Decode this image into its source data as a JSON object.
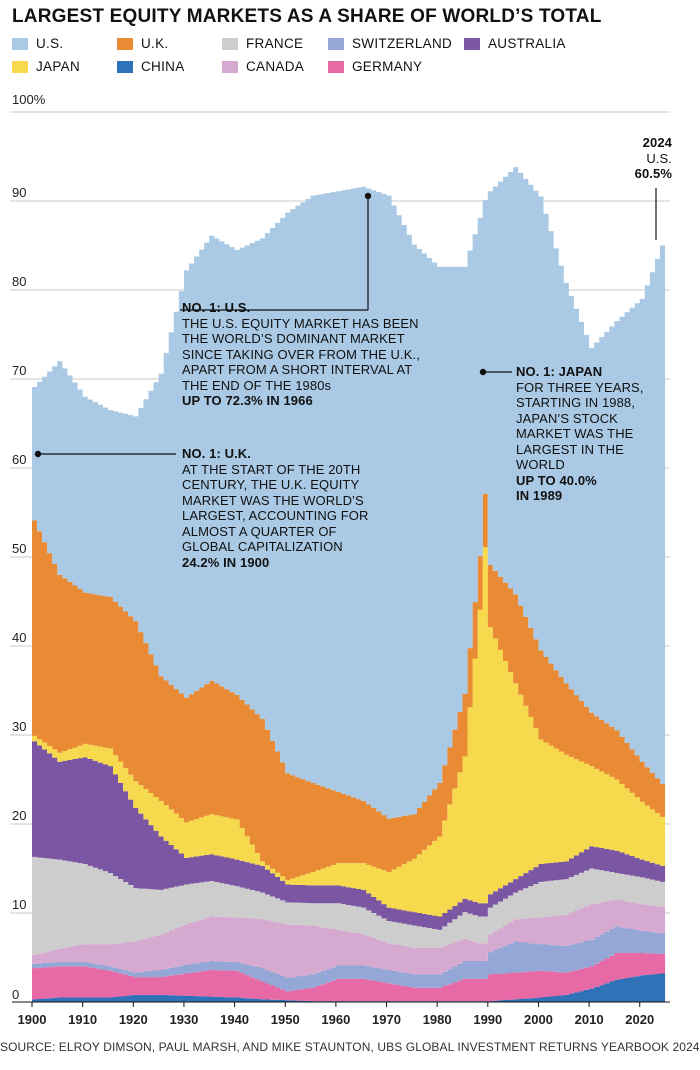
{
  "chart_data": {
    "type": "area",
    "stacked": true,
    "title": "LARGEST EQUITY MARKETS AS A SHARE OF WORLD’S TOTAL",
    "y_unit_label": "100%",
    "ylim": [
      0,
      100
    ],
    "y_ticks": [
      "0",
      "10",
      "20",
      "30",
      "40",
      "50",
      "60",
      "70",
      "80",
      "90"
    ],
    "x_ticks": [
      "1900",
      "1910",
      "1920",
      "1930",
      "1940",
      "1950",
      "1960",
      "1970",
      "1980",
      "1990",
      "2000",
      "2010",
      "2020"
    ],
    "x_range": [
      1900,
      2024
    ],
    "grid": "horizontal",
    "legend_position": "top",
    "legend": [
      {
        "name": "U.S.",
        "color": "#a9c9e4"
      },
      {
        "name": "U.K.",
        "color": "#e98a35"
      },
      {
        "name": "FRANCE",
        "color": "#cdcdcd"
      },
      {
        "name": "SWITZERLAND",
        "color": "#95a7d6"
      },
      {
        "name": "AUSTRALIA",
        "color": "#7b56a3"
      },
      {
        "name": "JAPAN",
        "color": "#f7d94d"
      },
      {
        "name": "CHINA",
        "color": "#2f72b8"
      },
      {
        "name": "CANADA",
        "color": "#d6a9d0"
      },
      {
        "name": "GERMANY",
        "color": "#e76aa6"
      }
    ],
    "stack_order": [
      "CHINA",
      "GERMANY",
      "SWITZERLAND",
      "CANADA",
      "FRANCE",
      "AUSTRALIA",
      "JAPAN",
      "U.K.",
      "U.S."
    ],
    "years": [
      1900,
      1905,
      1910,
      1915,
      1920,
      1925,
      1930,
      1935,
      1940,
      1945,
      1950,
      1955,
      1960,
      1965,
      1970,
      1975,
      1980,
      1985,
      1988,
      1989,
      1990,
      1995,
      2000,
      2005,
      2010,
      2015,
      2020,
      2024
    ],
    "series": [
      {
        "name": "CHINA",
        "values": [
          0.3,
          0.5,
          0.5,
          0.5,
          0.8,
          0.8,
          0.7,
          0.6,
          0.5,
          0.3,
          0.2,
          0.1,
          0.1,
          0.1,
          0.1,
          0.1,
          0.1,
          0.1,
          0.1,
          0.1,
          0.1,
          0.3,
          0.5,
          0.8,
          1.5,
          2.5,
          3.0,
          3.2
        ]
      },
      {
        "name": "GERMANY",
        "values": [
          3.5,
          3.5,
          3.5,
          3.0,
          2.0,
          2.0,
          2.5,
          3.0,
          3.0,
          2.0,
          1.0,
          1.5,
          2.5,
          2.5,
          2.0,
          1.5,
          1.5,
          2.5,
          2.5,
          2.5,
          3.0,
          3.0,
          3.0,
          2.5,
          2.5,
          3.0,
          2.5,
          2.2
        ]
      },
      {
        "name": "SWITZERLAND",
        "values": [
          0.5,
          0.5,
          0.5,
          0.5,
          0.5,
          0.8,
          1.0,
          1.0,
          1.0,
          1.5,
          1.5,
          1.5,
          1.5,
          1.5,
          1.5,
          1.5,
          1.5,
          2.0,
          2.0,
          2.0,
          2.5,
          3.5,
          3.0,
          3.0,
          3.0,
          3.0,
          2.5,
          2.3
        ]
      },
      {
        "name": "CANADA",
        "values": [
          1.0,
          1.5,
          2.0,
          2.5,
          3.5,
          4.0,
          4.5,
          5.0,
          5.0,
          5.5,
          6.0,
          5.5,
          4.0,
          3.5,
          3.0,
          3.0,
          3.0,
          2.5,
          2.0,
          2.0,
          2.0,
          2.5,
          3.0,
          3.5,
          4.0,
          3.0,
          3.0,
          3.0
        ]
      },
      {
        "name": "FRANCE",
        "values": [
          11.0,
          10.0,
          9.0,
          8.0,
          6.0,
          5.0,
          4.5,
          4.0,
          3.5,
          3.0,
          2.5,
          2.5,
          3.0,
          3.0,
          2.5,
          2.5,
          2.0,
          3.0,
          3.0,
          3.0,
          3.0,
          3.0,
          4.0,
          4.0,
          4.0,
          3.0,
          3.0,
          2.8
        ]
      },
      {
        "name": "AUSTRALIA",
        "values": [
          13.0,
          11.0,
          12.0,
          12.0,
          9.0,
          6.0,
          3.0,
          3.0,
          3.0,
          3.0,
          2.0,
          2.0,
          2.0,
          2.0,
          1.5,
          1.5,
          1.5,
          1.5,
          1.5,
          1.5,
          1.5,
          1.5,
          2.0,
          2.0,
          2.5,
          2.5,
          2.0,
          1.8
        ]
      },
      {
        "name": "JAPAN",
        "values": [
          0.6,
          1.0,
          1.5,
          2.0,
          3.0,
          4.0,
          4.0,
          4.5,
          4.5,
          0.5,
          0.5,
          1.5,
          2.5,
          3.0,
          4.0,
          6.0,
          9.0,
          16.0,
          33.0,
          40.0,
          30.0,
          22.0,
          14.0,
          12.0,
          9.0,
          8.0,
          6.5,
          5.5
        ]
      },
      {
        "name": "U.K.",
        "values": [
          24.2,
          20.0,
          17.0,
          17.0,
          18.0,
          14.0,
          14.0,
          15.0,
          14.0,
          16.0,
          12.0,
          10.0,
          8.0,
          7.0,
          6.0,
          5.0,
          6.0,
          7.0,
          6.0,
          6.0,
          7.0,
          10.0,
          10.0,
          8.0,
          6.0,
          5.5,
          4.5,
          3.7
        ]
      },
      {
        "name": "U.S.",
        "values": [
          15.0,
          24.0,
          22.0,
          21.0,
          23.0,
          34.0,
          48.0,
          50.0,
          50.0,
          54.0,
          63.0,
          66.0,
          67.5,
          69.0,
          70.0,
          64.0,
          58.0,
          48.0,
          38.0,
          33.0,
          42.0,
          48.0,
          51.0,
          45.0,
          41.0,
          46.0,
          52.0,
          60.5
        ]
      }
    ]
  },
  "annotations": {
    "us": {
      "head": "NO. 1: U.S.",
      "body": "THE U.S. EQUITY MARKET HAS BEEN\nTHE WORLD’S DOMINANT MARKET\nSINCE TAKING OVER FROM THE U.K.,\nAPART FROM A SHORT INTERVAL AT\nTHE END OF THE 1980s",
      "peak": "UP TO 72.3% IN 1966"
    },
    "uk": {
      "head": "NO. 1: U.K.",
      "body": "AT THE START OF THE 20TH\nCENTURY, THE U.K. EQUITY\nMARKET WAS THE WORLD’S\nLARGEST, ACCOUNTING FOR\nALMOST A QUARTER OF\nGLOBAL CAPITALIZATION",
      "peak": "24.2% IN 1900"
    },
    "japan": {
      "head": "NO. 1: JAPAN",
      "body": "FOR THREE YEARS,\nSTARTING IN 1988,\nJAPAN’S STOCK\nMARKET WAS THE\nLARGEST IN THE\nWORLD",
      "peak": "UP TO 40.0%\nIN 1989"
    },
    "latest": {
      "year": "2024",
      "country": "U.S.",
      "value": "60.5%"
    }
  },
  "source": "SOURCE: ELROY DIMSON, PAUL MARSH, AND MIKE STAUNTON, UBS GLOBAL INVESTMENT RETURNS YEARBOOK 2024"
}
